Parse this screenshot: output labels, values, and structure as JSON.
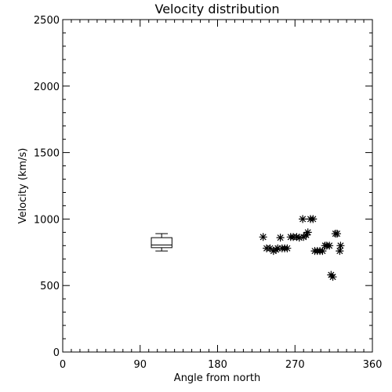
{
  "chart_data": {
    "type": "scatter",
    "title": "Velocity distribution",
    "xlabel": "Angle from north",
    "ylabel": "Velocity (km/s)",
    "xlim": [
      0,
      360
    ],
    "ylim": [
      0,
      2500
    ],
    "x_ticks": [
      0,
      90,
      180,
      270,
      360
    ],
    "y_ticks": [
      0,
      500,
      1000,
      1500,
      2000,
      2500
    ],
    "x_minor_step": 10,
    "y_minor_step": 100,
    "grid": false,
    "marker": "asterisk",
    "points": [
      {
        "x": 233,
        "y": 865
      },
      {
        "x": 237,
        "y": 780
      },
      {
        "x": 241,
        "y": 780
      },
      {
        "x": 245,
        "y": 760
      },
      {
        "x": 248,
        "y": 770
      },
      {
        "x": 250,
        "y": 780
      },
      {
        "x": 253,
        "y": 860
      },
      {
        "x": 255,
        "y": 780
      },
      {
        "x": 258,
        "y": 780
      },
      {
        "x": 261,
        "y": 780
      },
      {
        "x": 265,
        "y": 865
      },
      {
        "x": 268,
        "y": 865
      },
      {
        "x": 272,
        "y": 865
      },
      {
        "x": 275,
        "y": 860
      },
      {
        "x": 279,
        "y": 1000
      },
      {
        "x": 280,
        "y": 865
      },
      {
        "x": 283,
        "y": 880
      },
      {
        "x": 285,
        "y": 900
      },
      {
        "x": 288,
        "y": 1000
      },
      {
        "x": 291,
        "y": 1000
      },
      {
        "x": 293,
        "y": 760
      },
      {
        "x": 296,
        "y": 760
      },
      {
        "x": 299,
        "y": 760
      },
      {
        "x": 302,
        "y": 760
      },
      {
        "x": 305,
        "y": 800
      },
      {
        "x": 307,
        "y": 800
      },
      {
        "x": 310,
        "y": 800
      },
      {
        "x": 312,
        "y": 580
      },
      {
        "x": 314,
        "y": 565
      },
      {
        "x": 317,
        "y": 890
      },
      {
        "x": 319,
        "y": 890
      },
      {
        "x": 322,
        "y": 760
      },
      {
        "x": 323,
        "y": 800
      }
    ],
    "boxplot": {
      "x_center": 115,
      "x_halfwidth": 12,
      "whisker_low": 760,
      "q1": 785,
      "median": 805,
      "q3": 860,
      "whisker_high": 890
    }
  }
}
